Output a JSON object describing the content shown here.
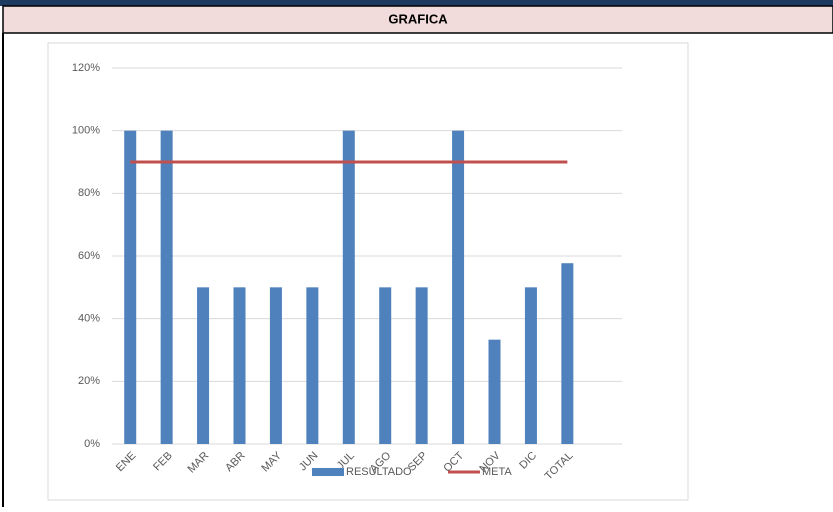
{
  "header": {
    "title": "GRAFICA"
  },
  "chart_data": {
    "type": "bar",
    "categories": [
      "ENE",
      "FEB",
      "MAR",
      "ABR",
      "MAY",
      "JUN",
      "JUL",
      "AGO",
      "SEP",
      "OCT",
      "NOV",
      "DIC",
      "TOTAL",
      null
    ],
    "series": [
      {
        "name": "RESULTADO",
        "type": "bar",
        "color": "#4f81bd",
        "values": [
          100,
          100,
          50,
          50,
          50,
          50,
          100,
          50,
          50,
          100,
          33.3,
          50,
          57.7,
          null
        ]
      },
      {
        "name": "META",
        "type": "line",
        "color": "#c0504d",
        "values": [
          90,
          90,
          90,
          90,
          90,
          90,
          90,
          90,
          90,
          90,
          90,
          90,
          90,
          null
        ]
      }
    ],
    "ylim": [
      0,
      120
    ],
    "yticks": [
      {
        "value": 0,
        "label": "0%"
      },
      {
        "value": 20,
        "label": "20%"
      },
      {
        "value": 40,
        "label": "40%"
      },
      {
        "value": 60,
        "label": "60%"
      },
      {
        "value": 80,
        "label": "80%"
      },
      {
        "value": 100,
        "label": "100%"
      },
      {
        "value": 120,
        "label": "120%"
      }
    ],
    "grid": true,
    "legend": "bottom"
  }
}
